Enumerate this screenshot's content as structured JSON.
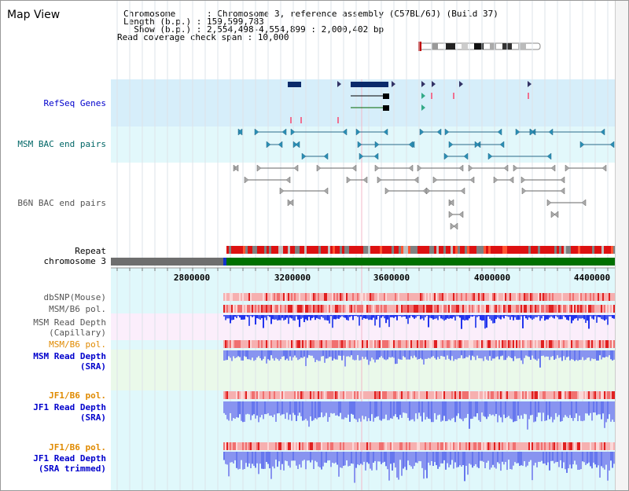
{
  "page": {
    "title": "Map View"
  },
  "info": {
    "chromosome_line": "Chromosome      : Chromosome 3, reference assembly (C57BL/6J) (Build 37)",
    "length_line": "Length (b.p.) : 159,599,783",
    "show_line": "  Show (b.p.) : 2,554,498-4,554,899 : 2,000,402 bp",
    "coverage_line": "Read coverage check span : 10,000"
  },
  "tracks": {
    "refseq": "RefSeq Genes",
    "msm_bac": "MSM BAC end pairs",
    "b6n_bac": "B6N BAC end pairs",
    "repeat": "Repeat",
    "chromosome": "chromosome 3",
    "dbsnp": "dbSNP(Mouse)",
    "msm_b6_pol_1": "MSM/B6 pol.",
    "msm_read_depth_cap_1": "MSM Read Depth",
    "msm_read_depth_cap_2": "(Capillary)",
    "msm_b6_pol_2": "MSM/B6 pol.",
    "msm_read_depth_sra_1": "MSM Read Depth",
    "msm_read_depth_sra_2": "(SRA)",
    "jf1_b6_pol_1": "JF1/B6 pol.",
    "jf1_read_depth_sra_1": "JF1 Read Depth",
    "jf1_read_depth_sra_2": "(SRA)",
    "jf1_b6_pol_2": "JF1/B6 pol.",
    "jf1_read_depth_trim_1": "JF1 Read Depth",
    "jf1_read_depth_trim_2": "(SRA trimmed)"
  },
  "axis": {
    "ticks": [
      "2800000",
      "3200000",
      "3600000",
      "4000000",
      "4400000"
    ]
  },
  "colors": {
    "refseq_bg": "#d6eefa",
    "msm_bac_bg": "#e2f8fb",
    "depth_capillary_bg": "#fbeefb",
    "depth_sra_bg": "#eaf9ea",
    "jf1_bg": "#e0f8fb",
    "chromosome_green": "#007000",
    "chromosome_gray": "#6e6e6e",
    "gene_navy": "#0a2a6a",
    "depth_blue": "#3344ee"
  }
}
